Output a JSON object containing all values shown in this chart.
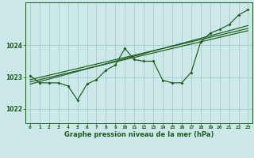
{
  "title": "Graphe pression niveau de la mer (hPa)",
  "bg_color": "#cce8e8",
  "grid_color": "#aad0d0",
  "line_color": "#1a5c1a",
  "x_ticks": [
    0,
    1,
    2,
    3,
    4,
    5,
    6,
    7,
    8,
    9,
    10,
    11,
    12,
    13,
    14,
    15,
    16,
    17,
    18,
    19,
    20,
    21,
    22,
    23
  ],
  "y_ticks": [
    1022,
    1023,
    1024
  ],
  "ylim": [
    1021.55,
    1025.35
  ],
  "xlim": [
    -0.5,
    23.5
  ],
  "main_series": [
    1023.05,
    1022.82,
    1022.82,
    1022.82,
    1022.72,
    1022.28,
    1022.78,
    1022.92,
    1023.22,
    1023.38,
    1023.9,
    1023.55,
    1023.5,
    1023.5,
    1022.9,
    1022.82,
    1022.82,
    1023.15,
    1024.1,
    1024.38,
    1024.5,
    1024.65,
    1024.95,
    1025.12
  ],
  "linear_series1": [
    1022.85,
    1022.92,
    1022.99,
    1023.06,
    1023.13,
    1023.2,
    1023.27,
    1023.34,
    1023.41,
    1023.48,
    1023.55,
    1023.62,
    1023.69,
    1023.76,
    1023.83,
    1023.9,
    1023.97,
    1024.04,
    1024.11,
    1024.18,
    1024.25,
    1024.32,
    1024.39,
    1024.46
  ],
  "linear_series2": [
    1022.78,
    1022.86,
    1022.94,
    1023.02,
    1023.1,
    1023.18,
    1023.26,
    1023.34,
    1023.42,
    1023.5,
    1023.58,
    1023.66,
    1023.74,
    1023.82,
    1023.9,
    1023.98,
    1024.06,
    1024.14,
    1024.22,
    1024.3,
    1024.38,
    1024.46,
    1024.54,
    1024.62
  ],
  "linear_series3": [
    1022.92,
    1022.99,
    1023.06,
    1023.13,
    1023.2,
    1023.27,
    1023.34,
    1023.41,
    1023.48,
    1023.55,
    1023.62,
    1023.69,
    1023.76,
    1023.83,
    1023.9,
    1023.97,
    1024.04,
    1024.11,
    1024.18,
    1024.25,
    1024.32,
    1024.39,
    1024.46,
    1024.53
  ]
}
